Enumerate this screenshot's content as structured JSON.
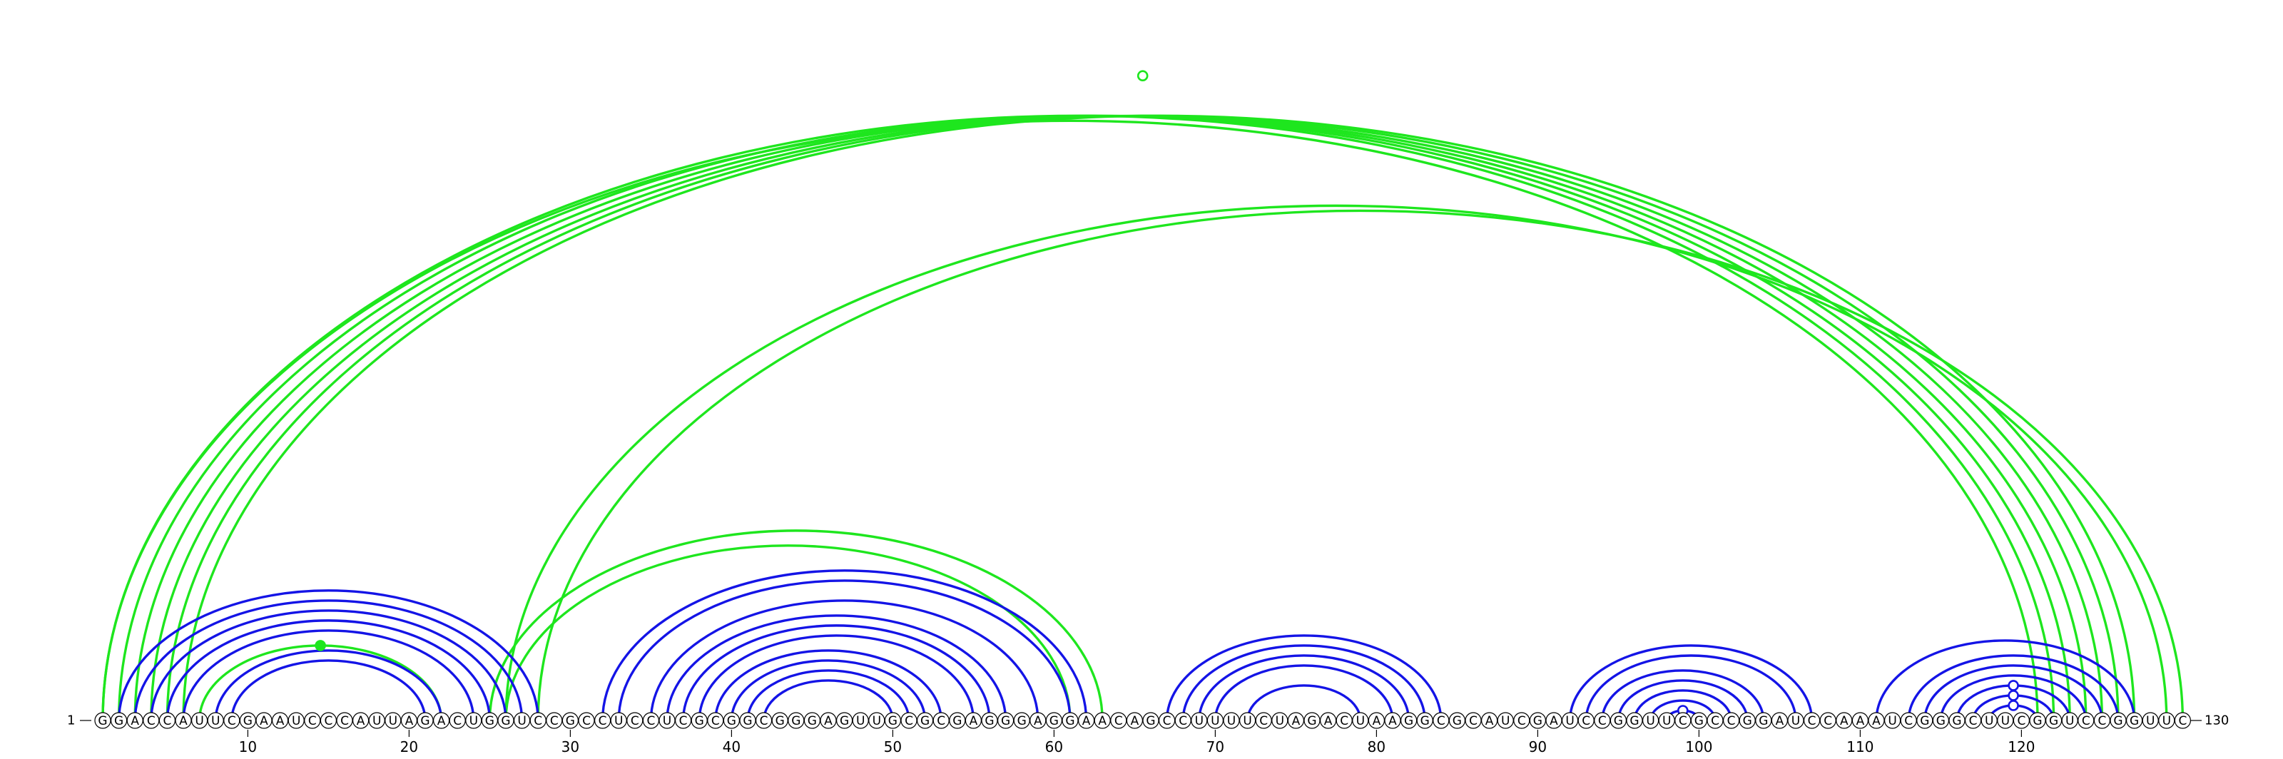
{
  "sequence": "GGACCAUUCGAAUCCCAUUAGACUGGUCCGCCUCCUCGCGGCGGGAGUUGCGCGAGGGAGGAACAGCCUUUUCUAGACUAAGGCGCAUCGAUCCGGUUCGCCGGAUCCAAAUCGGGCUUCGGUCCGGUUC",
  "start_label": "1",
  "end_label": "130",
  "ticks": [
    10,
    20,
    30,
    40,
    50,
    60,
    70,
    80,
    90,
    100,
    110,
    120
  ],
  "colors": {
    "blue": "#1414e6",
    "green": "#1ee61e",
    "marker_open": "#ffffff"
  },
  "pairs_blue": [
    [
      2,
      28
    ],
    [
      3,
      27
    ],
    [
      4,
      26
    ],
    [
      5,
      25
    ],
    [
      6,
      24
    ],
    [
      8,
      22
    ],
    [
      9,
      21
    ],
    [
      32,
      62
    ],
    [
      33,
      61
    ],
    [
      35,
      59
    ],
    [
      36,
      57
    ],
    [
      37,
      56
    ],
    [
      38,
      55
    ],
    [
      39,
      53
    ],
    [
      40,
      52
    ],
    [
      41,
      51
    ],
    [
      42,
      50
    ],
    [
      67,
      84
    ],
    [
      68,
      83
    ],
    [
      69,
      82
    ],
    [
      70,
      81
    ],
    [
      72,
      79
    ],
    [
      92,
      107
    ],
    [
      93,
      106
    ],
    [
      94,
      104
    ],
    [
      95,
      103
    ],
    [
      96,
      102
    ],
    [
      97,
      101
    ],
    [
      98,
      100
    ],
    [
      111,
      127
    ],
    [
      113,
      126
    ],
    [
      114,
      125
    ],
    [
      115,
      124
    ],
    [
      116,
      123
    ],
    [
      117,
      122
    ],
    [
      118,
      121
    ]
  ],
  "pairs_green": [
    [
      1,
      121
    ],
    [
      1,
      122
    ],
    [
      2,
      123
    ],
    [
      3,
      124
    ],
    [
      4,
      125
    ],
    [
      5,
      126
    ],
    [
      6,
      127
    ],
    [
      26,
      129
    ],
    [
      28,
      130
    ],
    [
      7,
      22
    ],
    [
      25,
      63
    ],
    [
      26,
      61
    ]
  ],
  "markers": [
    {
      "nt_a": 1,
      "nt_b": 130,
      "fraction": 1.0,
      "color": "green",
      "filled": false
    },
    {
      "nt_a": 7,
      "nt_b": 22,
      "fraction": 1.0,
      "color": "green",
      "filled": true
    },
    {
      "nt_a": 98,
      "nt_b": 100,
      "fraction": 1.0,
      "color": "blue",
      "filled": false
    },
    {
      "nt_a": 116,
      "nt_b": 123,
      "fraction": 1.0,
      "color": "blue",
      "filled": false
    },
    {
      "nt_a": 117,
      "nt_b": 122,
      "fraction": 1.0,
      "color": "blue",
      "filled": false
    },
    {
      "nt_a": 118,
      "nt_b": 121,
      "fraction": 1.0,
      "color": "blue",
      "filled": false
    }
  ]
}
